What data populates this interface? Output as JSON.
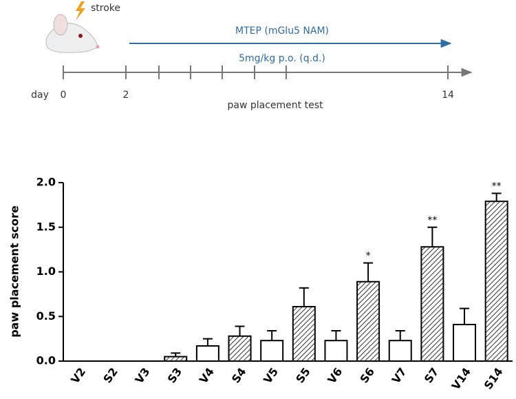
{
  "timeline": {
    "event": "stroke",
    "treatment": "MTEP (mGlu5 NAM)",
    "dose": "5mg/kg p.o. (q.d.)",
    "day_label": "day",
    "day_ticks": [
      "0",
      "2",
      "14"
    ],
    "test": "paw placement test"
  },
  "chart_data": {
    "type": "bar",
    "y_label": "paw placement score",
    "categories": [
      "V2",
      "S2",
      "V3",
      "S3",
      "V4",
      "S4",
      "V5",
      "S5",
      "V6",
      "S6",
      "V7",
      "S7",
      "V14",
      "S14"
    ],
    "values": [
      0,
      0,
      0,
      0.05,
      0.17,
      0.28,
      0.23,
      0.61,
      0.23,
      0.89,
      0.23,
      1.28,
      0.41,
      1.79
    ],
    "errors": [
      0,
      0,
      0,
      0.04,
      0.08,
      0.11,
      0.11,
      0.21,
      0.11,
      0.21,
      0.11,
      0.22,
      0.18,
      0.09
    ],
    "significance": [
      null,
      null,
      null,
      null,
      null,
      null,
      null,
      null,
      null,
      "*",
      null,
      "**",
      null,
      "**"
    ],
    "fills": [
      "#ffffff",
      "hatch",
      "#ffffff",
      "hatch",
      "#ffffff",
      "hatch",
      "#ffffff",
      "hatch",
      "#ffffff",
      "hatch",
      "#ffffff",
      "hatch",
      "#ffffff",
      "hatch"
    ],
    "ylim": [
      0,
      2.0
    ],
    "yticks": [
      {
        "value": 0,
        "label": "0.0"
      },
      {
        "value": 0.5,
        "label": "0.5"
      },
      {
        "value": 1.0,
        "label": "1.0"
      },
      {
        "value": 1.5,
        "label": "1.5"
      },
      {
        "value": 2.0,
        "label": "2.0"
      }
    ]
  }
}
